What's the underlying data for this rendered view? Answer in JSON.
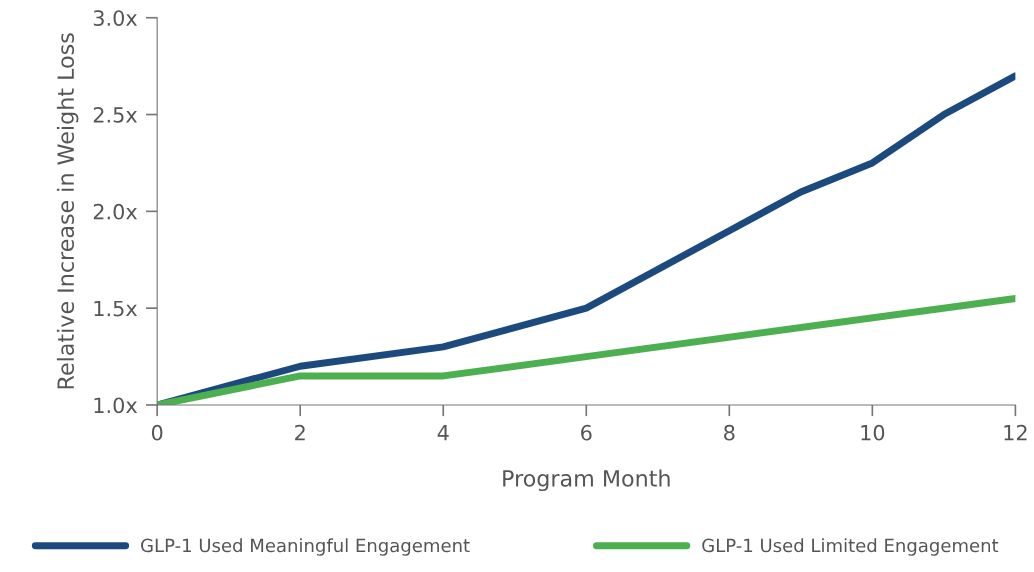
{
  "chart_data": {
    "type": "line",
    "xlabel": "Program Month",
    "ylabel": "Relative Increase in Weight Loss",
    "xlim": [
      0,
      12
    ],
    "xticks": [
      0,
      2,
      4,
      6,
      8,
      10,
      12
    ],
    "ylim": [
      1.0,
      3.0
    ],
    "yticks": [
      {
        "value": 1.0,
        "label": "1.0x"
      },
      {
        "value": 1.5,
        "label": "1.5x"
      },
      {
        "value": 2.0,
        "label": "2.0x"
      },
      {
        "value": 2.5,
        "label": "2.5x"
      },
      {
        "value": 3.0,
        "label": "3.0x"
      }
    ],
    "grid": false,
    "legend": "bottom",
    "marker": "none",
    "line_style": "solid",
    "series": [
      {
        "name": "GLP-1 Used Meaningful Engagement",
        "color": "#1c4a7e",
        "x": [
          0,
          2,
          4,
          6,
          8,
          9,
          10,
          11,
          12
        ],
        "values": [
          1.0,
          1.2,
          1.3,
          1.5,
          1.9,
          2.1,
          2.25,
          2.5,
          2.7
        ]
      },
      {
        "name": "GLP-1 Used Limited Engagement",
        "color": "#4caf50",
        "x": [
          0,
          2,
          4,
          6,
          12
        ],
        "values": [
          1.0,
          1.15,
          1.15,
          1.25,
          1.55
        ]
      }
    ]
  }
}
